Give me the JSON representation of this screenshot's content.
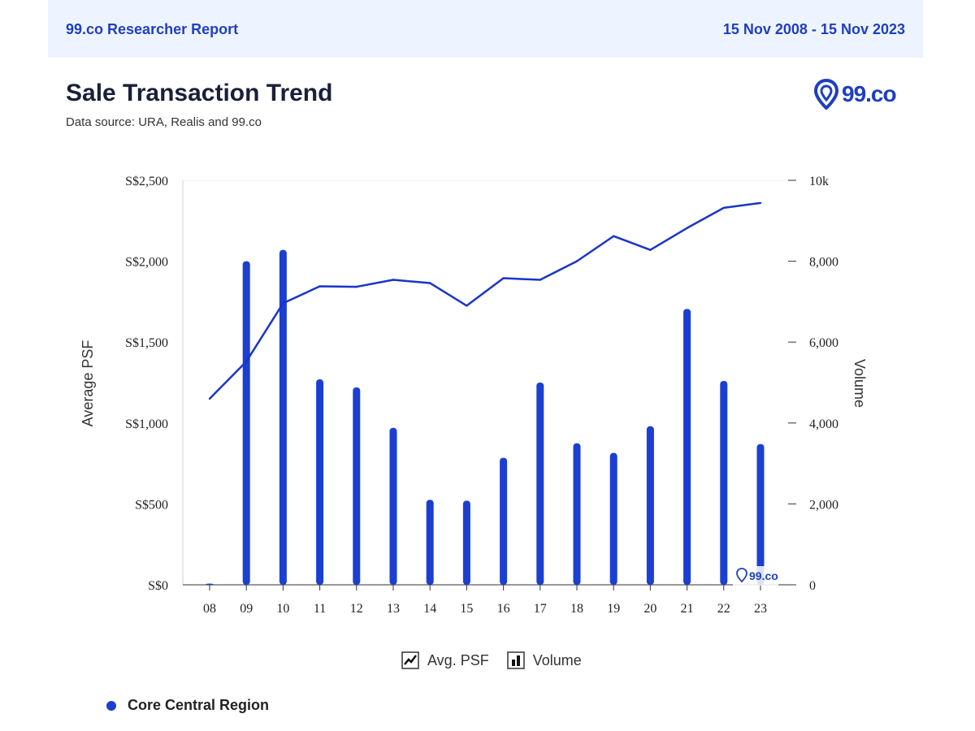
{
  "header": {
    "report_title": "99.co Researcher Report",
    "date_range": "15 Nov 2008 - 15 Nov 2023"
  },
  "page": {
    "title": "Sale Transaction Trend",
    "subtitle": "Data source: URA, Realis and 99.co",
    "logo_text": "99.co",
    "watermark_text": "99.co"
  },
  "legend": {
    "avg_psf_label": "Avg. PSF",
    "volume_label": "Volume"
  },
  "region": {
    "label": "Core Central Region"
  },
  "colors": {
    "accent": "#1f3fbf",
    "bar": "#1a3fd1",
    "line": "#1a35c8",
    "header_bg": "#eef4ff"
  },
  "chart_data": {
    "type": "bar+line",
    "categories": [
      "08",
      "09",
      "10",
      "11",
      "12",
      "13",
      "14",
      "15",
      "16",
      "17",
      "18",
      "19",
      "20",
      "21",
      "22",
      "23"
    ],
    "series": [
      {
        "name": "Volume",
        "type": "bar",
        "axis": "right",
        "values": [
          30,
          8000,
          8280,
          5080,
          4880,
          3880,
          2100,
          2080,
          3140,
          5000,
          3500,
          3260,
          3920,
          6820,
          5040,
          3480
        ]
      },
      {
        "name": "Avg. PSF",
        "type": "line",
        "axis": "left",
        "values": [
          1150,
          1380,
          1740,
          1845,
          1842,
          1885,
          1865,
          1725,
          1895,
          1885,
          2000,
          2155,
          2070,
          2205,
          2330,
          2360
        ]
      }
    ],
    "left_axis": {
      "label": "Average PSF",
      "ticks": [
        "S$0",
        "S$500",
        "S$1,000",
        "S$1,500",
        "S$2,000",
        "S$2,500"
      ],
      "range": [
        0,
        2500
      ]
    },
    "right_axis": {
      "label": "Volume",
      "ticks": [
        "0",
        "2,000",
        "4,000",
        "6,000",
        "8,000",
        "10k"
      ],
      "range": [
        0,
        10000
      ]
    },
    "xlabel": "",
    "grid": false,
    "legend_position": "bottom"
  }
}
